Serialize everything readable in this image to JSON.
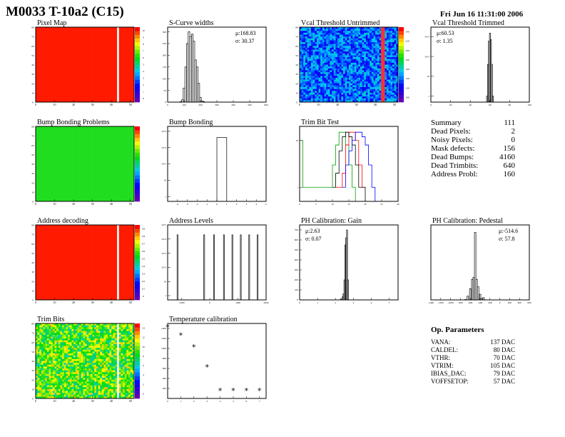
{
  "header": {
    "title": "M0033 T-10a2 (C15)",
    "date": "Fri Jun 16 11:31:00 2006"
  },
  "colors": {
    "hist_line": "#000000",
    "trim_series": [
      "#00a000",
      "#ff0000",
      "#000000",
      "#0000ff"
    ]
  },
  "summary": {
    "rows": [
      {
        "label": "Summary",
        "value": "111"
      },
      {
        "label": "Dead Pixels:",
        "value": "2"
      },
      {
        "label": "Noisy Pixels:",
        "value": "0"
      },
      {
        "label": "Mask defects:",
        "value": "156"
      },
      {
        "label": "Dead Bumps:",
        "value": "4160"
      },
      {
        "label": "Dead Trimbits:",
        "value": "640"
      },
      {
        "label": "Address Probl:",
        "value": "160"
      }
    ]
  },
  "op_parameters": {
    "title": "Op. Parameters",
    "rows": [
      {
        "label": "VANA:",
        "value": "137 DAC"
      },
      {
        "label": "CALDEL:",
        "value": "80 DAC"
      },
      {
        "label": "VTHR:",
        "value": "70 DAC"
      },
      {
        "label": "VTRIM:",
        "value": "105 DAC"
      },
      {
        "label": "IBIAS_DAC:",
        "value": "79 DAC"
      },
      {
        "label": "VOFFSETOP:",
        "value": "57 DAC"
      }
    ]
  },
  "chart_data": [
    {
      "id": "pixel-map",
      "type": "heatmap",
      "title": "Pixel Map",
      "cols": 52,
      "rows": 80,
      "fill": "red",
      "blank_columns": [
        43
      ],
      "zlim": [
        0,
        10
      ],
      "xticks": [
        0,
        10,
        20,
        30,
        40,
        50
      ],
      "yticks": [
        0,
        10,
        20,
        30,
        40,
        50,
        60,
        70,
        80
      ],
      "zticks": [
        0,
        1,
        2,
        3,
        4,
        5,
        6,
        7,
        8,
        9,
        10
      ]
    },
    {
      "id": "s-curve-widths",
      "type": "bar",
      "title": "S-Curve widths",
      "stats": {
        "mean": "μ:168.83",
        "sigma": "σ: 30.37"
      },
      "x": [
        80,
        90,
        100,
        110,
        120,
        130,
        140,
        150,
        160,
        170,
        180,
        190,
        200,
        210,
        220
      ],
      "values": [
        2,
        10,
        60,
        150,
        250,
        300,
        280,
        290,
        260,
        180,
        150,
        80,
        20,
        5,
        2
      ],
      "binwidth": 10,
      "xlim": [
        0,
        600
      ],
      "ylim": [
        0,
        320
      ],
      "xticks": [
        0,
        100,
        200,
        300,
        400,
        500,
        600
      ],
      "yticks": [
        0,
        50,
        100,
        150,
        200,
        250,
        300
      ]
    },
    {
      "id": "vcal-threshold-untrimmed",
      "type": "heatmap",
      "title": "Vcal Threshold Untrimmed",
      "cols": 52,
      "rows": 80,
      "fill": "noise-blue",
      "red_columns": [
        43,
        44
      ],
      "zlim": [
        90,
        250
      ],
      "xticks": [
        0,
        10,
        20,
        30,
        40,
        50
      ],
      "yticks": [
        0,
        10,
        20,
        30,
        40,
        50,
        60,
        70,
        80
      ],
      "zticks": [
        100,
        120,
        140,
        160,
        180,
        200,
        220,
        240
      ]
    },
    {
      "id": "vcal-threshold-trimmed",
      "type": "bar",
      "title": "Vcal Threshold Trimmed",
      "stats": {
        "mean": "μ:60.53",
        "sigma": "σ: 1.35"
      },
      "log": true,
      "x": [
        57,
        58,
        59,
        60,
        61,
        62,
        63
      ],
      "values": [
        1,
        40,
        600,
        1500,
        700,
        40,
        1
      ],
      "binwidth": 1,
      "xlim": [
        0,
        100
      ],
      "ylim": [
        0.5,
        3000
      ],
      "xticks": [
        0,
        20,
        40,
        60,
        80,
        100
      ]
    },
    {
      "id": "bump-bonding-problems",
      "type": "heatmap",
      "title": "Bump Bonding Problems",
      "cols": 52,
      "rows": 80,
      "fill": "green",
      "zlim": [
        0,
        1
      ],
      "xticks": [
        0,
        10,
        20,
        30,
        40,
        50
      ],
      "yticks": [
        0,
        10,
        20,
        30,
        40,
        50,
        60,
        70,
        80
      ]
    },
    {
      "id": "bump-bonding",
      "type": "bar",
      "title": "Bump Bonding",
      "log": true,
      "x": [
        0.5
      ],
      "values": [
        4160
      ],
      "binwidth": 1,
      "xlim": [
        -5,
        5
      ],
      "ylim": [
        0.5,
        20000
      ],
      "xticks": [
        -4,
        -3,
        -2,
        -1,
        0,
        1,
        2,
        3,
        4,
        5
      ]
    },
    {
      "id": "trim-bit-test",
      "type": "line",
      "title": "Trim Bit Test",
      "log": true,
      "xlim": [
        0,
        30
      ],
      "ylim": [
        0.5,
        20
      ],
      "series": [
        {
          "x": [
            0,
            1,
            9,
            10,
            11,
            12,
            13,
            14,
            15,
            16,
            17
          ],
          "values": [
            10,
            1,
            1,
            3,
            8,
            15,
            15,
            8,
            3,
            1,
            0
          ]
        },
        {
          "x": [
            11,
            12,
            13,
            14,
            15,
            16,
            17,
            18,
            19
          ],
          "values": [
            1,
            1,
            2,
            8,
            15,
            15,
            10,
            3,
            1
          ]
        },
        {
          "x": [
            10,
            11,
            12,
            13,
            14,
            15,
            16,
            17,
            18,
            19,
            20
          ],
          "values": [
            1,
            2,
            6,
            12,
            15,
            12,
            8,
            3,
            1,
            1,
            0
          ]
        },
        {
          "x": [
            13,
            14,
            15,
            16,
            17,
            18,
            19,
            20,
            21,
            22,
            23
          ],
          "values": [
            1,
            3,
            6,
            10,
            15,
            15,
            12,
            8,
            3,
            1,
            0
          ]
        }
      ],
      "xticks": [
        0,
        5,
        10,
        15,
        20,
        25,
        30
      ]
    },
    {
      "id": "address-decoding",
      "type": "heatmap",
      "title": "Address decoding",
      "cols": 52,
      "rows": 80,
      "fill": "red",
      "blank_columns": [
        43
      ],
      "zlim": [
        0,
        1
      ],
      "xticks": [
        0,
        10,
        20,
        30,
        40,
        50
      ],
      "yticks": [
        0,
        10,
        20,
        30,
        40,
        50,
        60,
        70,
        80
      ],
      "zticks": [
        0,
        0.1,
        0.2,
        0.3,
        0.4,
        0.5,
        0.6,
        0.7,
        0.8,
        0.9
      ]
    },
    {
      "id": "address-levels",
      "type": "bar",
      "title": "Address Levels",
      "log": true,
      "x": [
        -1150,
        -200,
        150,
        500,
        800,
        1100,
        1400,
        1700
      ],
      "values": [
        20000,
        20000,
        20000,
        20000,
        20000,
        20000,
        20000,
        20000
      ],
      "binwidth": 30,
      "xlim": [
        -1500,
        2000
      ],
      "ylim": [
        0.5,
        100000
      ],
      "xticks": [
        -1000,
        0,
        1000,
        2000
      ]
    },
    {
      "id": "ph-calibration-gain",
      "type": "bar",
      "title": "PH Calibration: Gain",
      "stats": {
        "mean": "μ:2.63",
        "sigma": "σ: 0.07"
      },
      "x": [
        2.3,
        2.4,
        2.45,
        2.5,
        2.55,
        2.6,
        2.65,
        2.7,
        2.75
      ],
      "values": [
        10,
        30,
        60,
        200,
        550,
        620,
        700,
        200,
        0
      ],
      "binwidth": 0.05,
      "xlim": [
        0,
        5.5
      ],
      "ylim": [
        0,
        750
      ],
      "xticks": [
        0,
        1,
        2,
        3,
        4,
        5
      ],
      "yticks": [
        0,
        100,
        200,
        300,
        400,
        500,
        600,
        700
      ]
    },
    {
      "id": "ph-calibration-pedestal",
      "type": "bar",
      "title": "PH Calibration: Pedestal",
      "stats": {
        "mean": "μ:-514.6",
        "sigma": "σ: 57.8"
      },
      "x": [
        -700,
        -650,
        -600,
        -560,
        -530,
        -500,
        -470,
        -440,
        -400,
        -370,
        -330,
        -300
      ],
      "values": [
        10,
        100,
        300,
        550,
        600,
        1800,
        550,
        350,
        150,
        40,
        60,
        5
      ],
      "binwidth": 30,
      "xlim": [
        -1400,
        600
      ],
      "ylim": [
        0,
        2000
      ],
      "xticks": [
        -1400,
        -1200,
        -1000,
        -800,
        -600,
        -400,
        -200,
        0,
        200,
        400,
        600
      ]
    },
    {
      "id": "trim-bits",
      "type": "heatmap",
      "title": "Trim Bits",
      "cols": 52,
      "rows": 80,
      "fill": "noise-green",
      "blank_columns": [
        43
      ],
      "zlim": [
        0,
        15
      ],
      "xticks": [
        0,
        10,
        20,
        30,
        40,
        50
      ],
      "yticks": [
        0,
        10,
        20,
        30,
        40,
        50,
        60,
        70,
        80
      ],
      "zticks": [
        0,
        2,
        4,
        6,
        8,
        10,
        12,
        14
      ]
    },
    {
      "id": "temperature-calibration",
      "type": "scatter",
      "title": "Temperature calibration",
      "x": [
        0,
        1,
        2,
        3,
        4,
        5,
        6,
        7
      ],
      "values": [
        1420,
        1260,
        1020,
        620,
        150,
        150,
        150,
        150
      ],
      "xlim": [
        0,
        7.5
      ],
      "ylim": [
        0,
        1500
      ],
      "xticks": [
        0,
        1,
        2,
        3,
        4,
        5,
        6,
        7
      ],
      "yticks": [
        200,
        400,
        600,
        800,
        1000,
        1200,
        1400
      ]
    }
  ]
}
